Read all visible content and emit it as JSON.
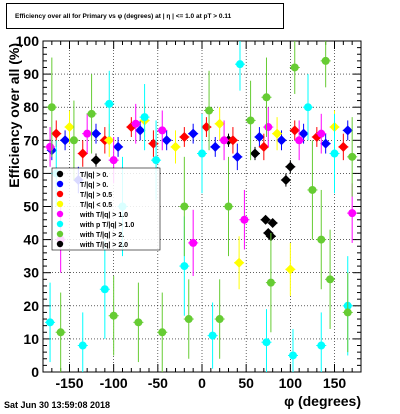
{
  "chart_data": {
    "type": "scatter",
    "title": "Efficiency over all for Primary vs φ (degrees) at | η | <= 1.0 at pT > 0.11",
    "xlabel": "φ (degrees)",
    "ylabel": "Efficiency over all (%)",
    "xlim": [
      -180,
      180
    ],
    "ylim": [
      0,
      100
    ],
    "x_ticks": [
      -150,
      -100,
      -50,
      0,
      50,
      100,
      150
    ],
    "y_ticks": [
      0,
      10,
      20,
      30,
      40,
      50,
      60,
      70,
      80,
      90,
      100
    ],
    "grid": true,
    "legend_position": "left",
    "legend_entries": [
      "T/|q| > 0.",
      "T/|q| > 0.",
      "T/|q| > 0.5",
      "T/|q| < 0.5",
      "with T/|q| > 1.0",
      "with p T/|q| > 1.0",
      "with T/|q| > 2.",
      "with T/|q| > 2.0"
    ],
    "series": [
      {
        "color": "#000000",
        "marker": "diamond",
        "points": [
          {
            "x": 72,
            "y": 46,
            "err": 1
          },
          {
            "x": 75,
            "y": 42,
            "err": 1
          },
          {
            "x": 78,
            "y": 41,
            "err": 1
          },
          {
            "x": 80,
            "y": 45,
            "err": 1
          },
          {
            "x": 95,
            "y": 58,
            "err": 2
          },
          {
            "x": 100,
            "y": 62,
            "err": 2
          },
          {
            "x": -120,
            "y": 64,
            "err": 2
          },
          {
            "x": 60,
            "y": 66,
            "err": 2
          },
          {
            "x": 30,
            "y": 70,
            "err": 2
          }
        ]
      },
      {
        "color": "#0000ff",
        "marker": "diamond",
        "points": [
          {
            "x": -170,
            "y": 67,
            "err": 3
          },
          {
            "x": -155,
            "y": 70,
            "err": 3
          },
          {
            "x": -140,
            "y": 58,
            "err": 4
          },
          {
            "x": -120,
            "y": 72,
            "err": 3
          },
          {
            "x": -95,
            "y": 68,
            "err": 3
          },
          {
            "x": -70,
            "y": 73,
            "err": 3
          },
          {
            "x": -40,
            "y": 70,
            "err": 3
          },
          {
            "x": -10,
            "y": 72,
            "err": 3
          },
          {
            "x": 15,
            "y": 68,
            "err": 3
          },
          {
            "x": 40,
            "y": 65,
            "err": 4
          },
          {
            "x": 65,
            "y": 71,
            "err": 3
          },
          {
            "x": 90,
            "y": 70,
            "err": 3
          },
          {
            "x": 115,
            "y": 72,
            "err": 3
          },
          {
            "x": 140,
            "y": 69,
            "err": 3
          },
          {
            "x": 165,
            "y": 73,
            "err": 3
          }
        ]
      },
      {
        "color": "#ff0000",
        "marker": "diamond",
        "points": [
          {
            "x": -165,
            "y": 72,
            "err": 4
          },
          {
            "x": -135,
            "y": 66,
            "err": 4
          },
          {
            "x": -110,
            "y": 70,
            "err": 4
          },
          {
            "x": -80,
            "y": 74,
            "err": 3
          },
          {
            "x": -55,
            "y": 69,
            "err": 4
          },
          {
            "x": -20,
            "y": 71,
            "err": 3
          },
          {
            "x": 5,
            "y": 74,
            "err": 3
          },
          {
            "x": 35,
            "y": 70,
            "err": 4
          },
          {
            "x": 70,
            "y": 68,
            "err": 4
          },
          {
            "x": 105,
            "y": 73,
            "err": 3
          },
          {
            "x": 130,
            "y": 71,
            "err": 3
          },
          {
            "x": 160,
            "y": 68,
            "err": 4
          }
        ]
      },
      {
        "color": "#ffff00",
        "marker": "diamond",
        "points": [
          {
            "x": -150,
            "y": 74,
            "err": 5
          },
          {
            "x": -105,
            "y": 70,
            "err": 5
          },
          {
            "x": -65,
            "y": 76,
            "err": 5
          },
          {
            "x": -30,
            "y": 68,
            "err": 5
          },
          {
            "x": 20,
            "y": 75,
            "err": 5
          },
          {
            "x": 42,
            "y": 33,
            "err": 8
          },
          {
            "x": 85,
            "y": 72,
            "err": 5
          },
          {
            "x": 100,
            "y": 31,
            "err": 8
          },
          {
            "x": 150,
            "y": 74,
            "err": 5
          }
        ]
      },
      {
        "color": "#ff00ff",
        "marker": "circle",
        "points": [
          {
            "x": -172,
            "y": 68,
            "err": 6
          },
          {
            "x": -160,
            "y": 40,
            "err": 10
          },
          {
            "x": -130,
            "y": 72,
            "err": 6
          },
          {
            "x": -100,
            "y": 64,
            "err": 7
          },
          {
            "x": -75,
            "y": 75,
            "err": 6
          },
          {
            "x": -45,
            "y": 73,
            "err": 6
          },
          {
            "x": -10,
            "y": 39,
            "err": 10
          },
          {
            "x": 25,
            "y": 70,
            "err": 6
          },
          {
            "x": 48,
            "y": 46,
            "err": 9
          },
          {
            "x": 75,
            "y": 74,
            "err": 6
          },
          {
            "x": 110,
            "y": 70,
            "err": 6
          },
          {
            "x": 135,
            "y": 72,
            "err": 6
          },
          {
            "x": 170,
            "y": 48,
            "err": 9
          }
        ]
      },
      {
        "color": "#00ffff",
        "marker": "circle",
        "points": [
          {
            "x": -172,
            "y": 15,
            "err": 12
          },
          {
            "x": -165,
            "y": 60,
            "err": 10
          },
          {
            "x": -135,
            "y": 8,
            "err": 10
          },
          {
            "x": -110,
            "y": 25,
            "err": 15
          },
          {
            "x": -105,
            "y": 81,
            "err": 10
          },
          {
            "x": -90,
            "y": 50,
            "err": 15
          },
          {
            "x": -65,
            "y": 77,
            "err": 10
          },
          {
            "x": -52,
            "y": 64,
            "err": 12
          },
          {
            "x": -20,
            "y": 32,
            "err": 15
          },
          {
            "x": 0,
            "y": 66,
            "err": 12
          },
          {
            "x": 12,
            "y": 11,
            "err": 10
          },
          {
            "x": 43,
            "y": 93,
            "err": 8
          },
          {
            "x": 73,
            "y": 9,
            "err": 10
          },
          {
            "x": 103,
            "y": 5,
            "err": 8
          },
          {
            "x": 120,
            "y": 80,
            "err": 10
          },
          {
            "x": 135,
            "y": 8,
            "err": 10
          },
          {
            "x": 150,
            "y": 66,
            "err": 12
          },
          {
            "x": 165,
            "y": 20,
            "err": 15
          }
        ]
      },
      {
        "color": "#66cc33",
        "marker": "circle",
        "points": [
          {
            "x": -170,
            "y": 80,
            "err": 15
          },
          {
            "x": -160,
            "y": 12,
            "err": 12
          },
          {
            "x": -145,
            "y": 70,
            "err": 12
          },
          {
            "x": -125,
            "y": 78,
            "err": 12
          },
          {
            "x": -100,
            "y": 17,
            "err": 12
          },
          {
            "x": -72,
            "y": 15,
            "err": 12
          },
          {
            "x": -45,
            "y": 12,
            "err": 12
          },
          {
            "x": -20,
            "y": 50,
            "err": 15
          },
          {
            "x": -15,
            "y": 16,
            "err": 12
          },
          {
            "x": 8,
            "y": 79,
            "err": 12
          },
          {
            "x": 20,
            "y": 16,
            "err": 12
          },
          {
            "x": 30,
            "y": 50,
            "err": 15
          },
          {
            "x": 55,
            "y": 76,
            "err": 12
          },
          {
            "x": 73,
            "y": 83,
            "err": 12
          },
          {
            "x": 78,
            "y": 27,
            "err": 15
          },
          {
            "x": 105,
            "y": 92,
            "err": 8
          },
          {
            "x": 125,
            "y": 55,
            "err": 15
          },
          {
            "x": 135,
            "y": 40,
            "err": 15
          },
          {
            "x": 140,
            "y": 94,
            "err": 8
          },
          {
            "x": 145,
            "y": 28,
            "err": 15
          },
          {
            "x": 165,
            "y": 18,
            "err": 12
          },
          {
            "x": 170,
            "y": 65,
            "err": 12
          }
        ]
      }
    ]
  },
  "footer": {
    "timestamp": "Sat Jun 30 13:59:08 2018"
  }
}
